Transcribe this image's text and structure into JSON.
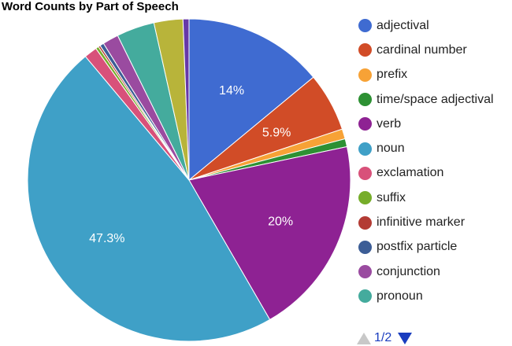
{
  "chart_data": {
    "type": "pie",
    "title": "Word Counts by Part of Speech",
    "legend_position": "right",
    "slices": [
      {
        "label": "adjectival",
        "value": 14.0,
        "color": "#3f6bd1",
        "data_label": "14%"
      },
      {
        "label": "cardinal number",
        "value": 5.9,
        "color": "#d14c27",
        "data_label": "5.9%"
      },
      {
        "label": "prefix",
        "value": 1.0,
        "color": "#f7a236",
        "data_label": ""
      },
      {
        "label": "time/space adjectival",
        "value": 0.8,
        "color": "#2d9033",
        "data_label": ""
      },
      {
        "label": "verb",
        "value": 20.0,
        "color": "#8e2293",
        "data_label": "20%"
      },
      {
        "label": "noun",
        "value": 47.3,
        "color": "#3fa0c7",
        "data_label": "47.3%"
      },
      {
        "label": "exclamation",
        "value": 1.3,
        "color": "#d8517a",
        "data_label": ""
      },
      {
        "label": "suffix",
        "value": 0.3,
        "color": "#76ad2a",
        "data_label": ""
      },
      {
        "label": "infinitive marker",
        "value": 0.2,
        "color": "#b33b34",
        "data_label": ""
      },
      {
        "label": "postfix particle",
        "value": 0.4,
        "color": "#3c5d96",
        "data_label": ""
      },
      {
        "label": "conjunction",
        "value": 1.6,
        "color": "#9a4ba0",
        "data_label": ""
      },
      {
        "label": "pronoun",
        "value": 3.8,
        "color": "#44ab9d",
        "data_label": ""
      },
      {
        "label": "",
        "value": 2.9,
        "color": "#b8b43a",
        "data_label": ""
      },
      {
        "label": "",
        "value": 0.6,
        "color": "#6638a8",
        "data_label": ""
      }
    ]
  },
  "legend_count": 12,
  "pager": {
    "text": "1/2",
    "up_icon": "triangle-up-icon",
    "down_icon": "triangle-down-icon"
  }
}
